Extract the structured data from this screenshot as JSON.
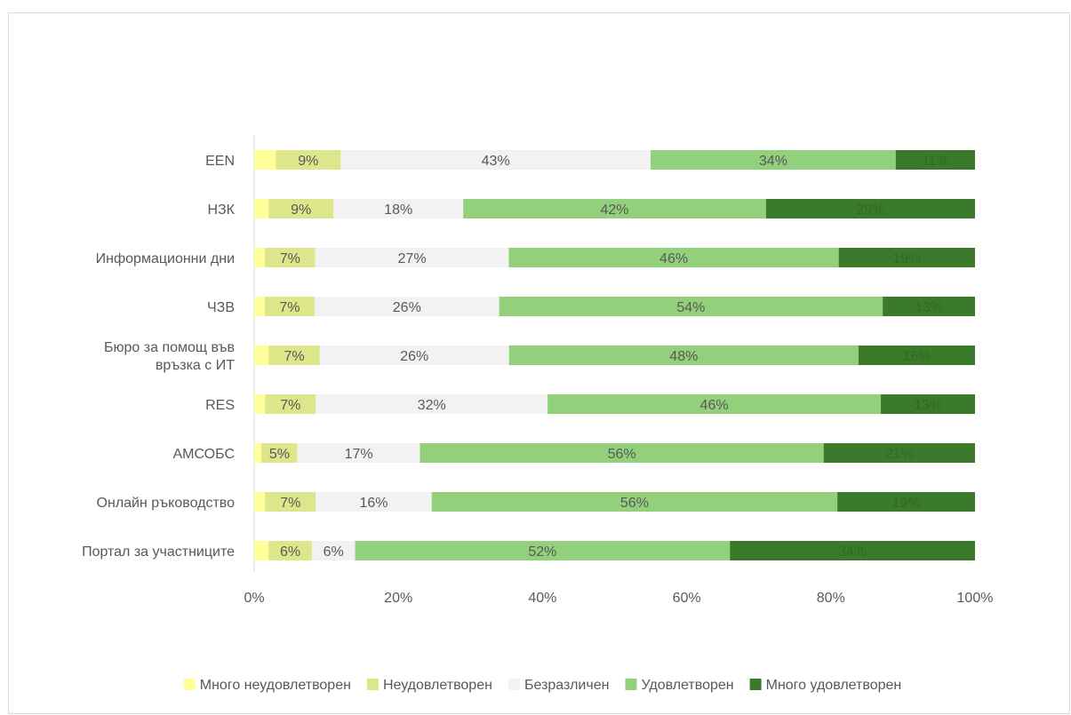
{
  "chart_data": {
    "type": "bar",
    "orientation": "horizontal",
    "stacked": "percent",
    "title": "",
    "xlabel": "",
    "ylabel": "",
    "categories": [
      [
        "EEN"
      ],
      [
        "НЗК"
      ],
      [
        "Информационни дни"
      ],
      [
        "ЧЗВ"
      ],
      [
        "Бюро за помощ във",
        "връзка с ИТ"
      ],
      [
        "RES"
      ],
      [
        "АМСОБС"
      ],
      [
        "Онлайн ръководство"
      ],
      [
        "Портал за участниците"
      ]
    ],
    "series": [
      {
        "name": "Много неудовлетворен",
        "color": "#ffff99",
        "values": [
          3,
          2,
          1.5,
          1.5,
          2,
          1.5,
          1,
          1.5,
          2
        ],
        "labels": [
          "",
          "",
          "",
          "",
          "",
          "",
          "",
          "",
          ""
        ],
        "label_color": "#595959"
      },
      {
        "name": "Неудовлетворен",
        "color": "#dde68a",
        "values": [
          9,
          9,
          7,
          7,
          7,
          7,
          5,
          7,
          6
        ],
        "labels": [
          "9%",
          "9%",
          "7%",
          "7%",
          "7%",
          "7%",
          "5%",
          "7%",
          "6%"
        ],
        "label_color": "#595959"
      },
      {
        "name": "Безразличен",
        "color": "#f2f2f2",
        "values": [
          43,
          18,
          27,
          26,
          26,
          32,
          17,
          16,
          6
        ],
        "labels": [
          "43%",
          "18%",
          "27%",
          "26%",
          "26%",
          "32%",
          "17%",
          "16%",
          "6%"
        ],
        "label_color": "#595959"
      },
      {
        "name": "Удовлетворен",
        "color": "#92d07c",
        "values": [
          34,
          42,
          46,
          54,
          48,
          46,
          56,
          56,
          52
        ],
        "labels": [
          "34%",
          "42%",
          "46%",
          "54%",
          "48%",
          "46%",
          "56%",
          "56%",
          "52%"
        ],
        "label_color": "#595959"
      },
      {
        "name": "Много удовлетворен",
        "color": "#3b7a2a",
        "values": [
          11,
          29,
          19,
          13,
          16,
          13,
          21,
          19,
          34
        ],
        "labels": [
          "11%",
          "29%",
          "19%",
          "13%",
          "16%",
          "13%",
          "21%",
          "19%",
          "34%"
        ],
        "label_color": "#2f6a23"
      }
    ],
    "xlim": [
      0,
      100
    ],
    "xticks": [
      "0%",
      "20%",
      "40%",
      "60%",
      "80%",
      "100%"
    ],
    "grid": false,
    "legend_position": "bottom"
  }
}
